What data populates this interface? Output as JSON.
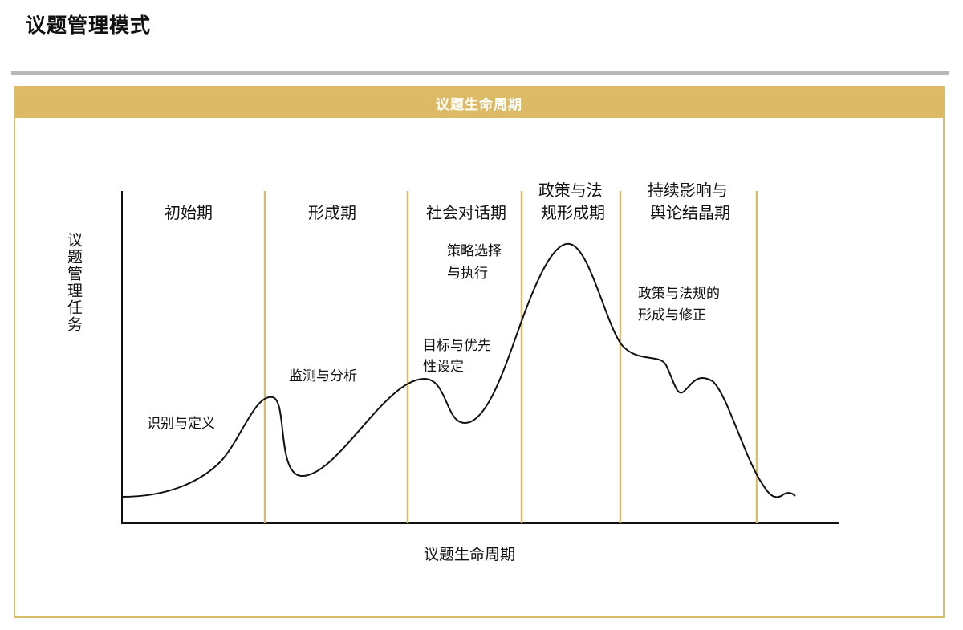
{
  "page": {
    "title": "议题管理模式"
  },
  "panel": {
    "header": "议题生命周期"
  },
  "diagram": {
    "y_axis_label": "议题管理任务",
    "x_axis_label": "议题生命周期",
    "stages": [
      {
        "lines": [
          "初始期"
        ]
      },
      {
        "lines": [
          "形成期"
        ]
      },
      {
        "lines": [
          "社会对话期"
        ]
      },
      {
        "lines": [
          "政策与法",
          "规形成期"
        ]
      },
      {
        "lines": [
          "持续影响与",
          "舆论结晶期"
        ]
      }
    ],
    "tasks": [
      {
        "lines": [
          "识别与定义"
        ]
      },
      {
        "lines": [
          "监测与分析"
        ]
      },
      {
        "lines": [
          "目标与优先",
          "性设定"
        ]
      },
      {
        "lines": [
          "策略选择",
          "与执行"
        ]
      },
      {
        "lines": [
          "政策与法规的",
          "形成与修正"
        ]
      }
    ],
    "colors": {
      "divider": "#d8bc6c",
      "curve": "#111111",
      "axis": "#111111"
    }
  }
}
